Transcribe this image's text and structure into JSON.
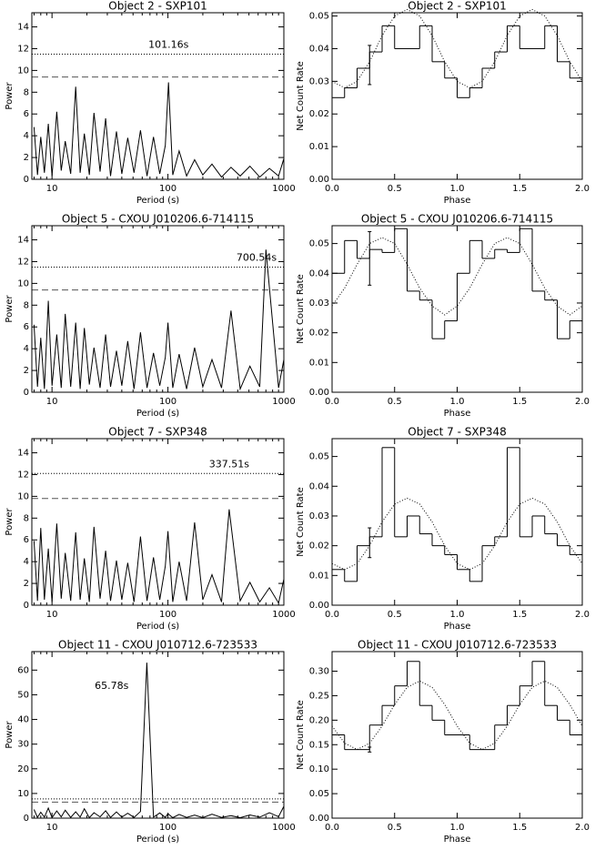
{
  "chart_data": [
    {
      "type": "line",
      "title": "Object 2 - SXP101",
      "xlabel": "Period (s)",
      "ylabel": "Power",
      "xlog": true,
      "color": "#000000",
      "x": [
        7,
        7.5,
        8,
        8.6,
        9.3,
        10,
        11,
        12,
        13,
        14.5,
        16,
        17.5,
        19,
        21,
        23,
        26,
        29,
        32,
        36,
        40,
        45,
        51,
        58,
        66,
        75,
        85,
        95,
        101.16,
        110,
        125,
        145,
        170,
        200,
        240,
        290,
        350,
        420,
        510,
        620,
        750,
        900,
        1000
      ],
      "values": [
        4.8,
        0.4,
        3.9,
        0.6,
        5.1,
        0.3,
        6.2,
        0.8,
        3.5,
        0.5,
        8.5,
        0.6,
        4.2,
        0.4,
        6.1,
        0.7,
        5.6,
        0.3,
        4.4,
        0.5,
        3.8,
        0.6,
        4.5,
        0.3,
        3.9,
        0.5,
        3.1,
        8.9,
        0.4,
        2.6,
        0.3,
        1.8,
        0.4,
        1.4,
        0.2,
        1.1,
        0.3,
        1.2,
        0.2,
        1.0,
        0.3,
        1.9
      ],
      "hlines": [
        {
          "value": 11.5,
          "style": "dotted",
          "color": "#000000"
        },
        {
          "value": 9.4,
          "style": "dashed",
          "color": "#555555"
        }
      ],
      "annotation": "101.16s",
      "xlim": [
        6.7,
        1000
      ],
      "xticks": [
        10,
        100,
        1000
      ],
      "ylim": [
        0,
        15.3
      ],
      "yticks": [
        0,
        2,
        4,
        6,
        8,
        10,
        12,
        14
      ]
    },
    {
      "type": "histogram",
      "title": "Object 2 - SXP101",
      "xlabel": "Phase",
      "ylabel": "Net Count Rate",
      "color": "#000000",
      "bins": [
        0,
        0.1,
        0.2,
        0.3,
        0.4,
        0.5,
        0.6,
        0.7,
        0.8,
        0.9,
        1.0,
        1.1,
        1.2,
        1.3,
        1.4,
        1.5,
        1.6,
        1.7,
        1.8,
        1.9,
        2.0
      ],
      "values": [
        0.025,
        0.028,
        0.034,
        0.039,
        0.047,
        0.04,
        0.04,
        0.047,
        0.036,
        0.031,
        0.025,
        0.028,
        0.034,
        0.039,
        0.047,
        0.04,
        0.04,
        0.047,
        0.036,
        0.031
      ],
      "fit": {
        "style": "dotted",
        "x": [
          0,
          0.1,
          0.2,
          0.3,
          0.4,
          0.5,
          0.6,
          0.7,
          0.8,
          0.9,
          1.0,
          1.1,
          1.2,
          1.3,
          1.4,
          1.5,
          1.6,
          1.7,
          1.8,
          1.9,
          2.0
        ],
        "values": [
          0.03,
          0.028,
          0.03,
          0.036,
          0.044,
          0.05,
          0.052,
          0.05,
          0.044,
          0.036,
          0.03,
          0.028,
          0.03,
          0.036,
          0.044,
          0.05,
          0.052,
          0.05,
          0.044,
          0.036,
          0.03
        ]
      },
      "error_bar": {
        "x": 0.3,
        "value": 0.035,
        "error": 0.006
      },
      "xlim": [
        0,
        2
      ],
      "xticks": [
        {
          "value": 0,
          "label": "0.0"
        },
        {
          "value": 0.5,
          "label": "0.5"
        },
        {
          "value": 1,
          "label": "1.0"
        },
        {
          "value": 1.5,
          "label": "1.5"
        },
        {
          "value": 2,
          "label": "2.0"
        }
      ],
      "ylim": [
        0,
        0.051
      ],
      "yticks": [
        {
          "value": 0,
          "label": "0.00"
        },
        {
          "value": 0.01,
          "label": "0.01"
        },
        {
          "value": 0.02,
          "label": "0.02"
        },
        {
          "value": 0.03,
          "label": "0.03"
        },
        {
          "value": 0.04,
          "label": "0.04"
        },
        {
          "value": 0.05,
          "label": "0.05"
        }
      ]
    },
    {
      "type": "line",
      "title": "Object 5 - CXOU J010206.6-714115",
      "xlabel": "Period (s)",
      "ylabel": "Power",
      "xlog": true,
      "color": "#000000",
      "x": [
        7,
        7.5,
        8,
        8.6,
        9.3,
        10,
        11,
        12,
        13,
        14.5,
        16,
        17.5,
        19,
        21,
        23,
        26,
        29,
        32,
        36,
        40,
        45,
        51,
        58,
        66,
        75,
        85,
        95,
        100,
        110,
        125,
        145,
        170,
        200,
        240,
        290,
        350,
        420,
        510,
        620,
        700.54,
        900,
        1000
      ],
      "values": [
        6.2,
        0.5,
        5.0,
        0.3,
        8.4,
        0.6,
        5.3,
        0.4,
        7.2,
        0.5,
        6.4,
        0.3,
        5.9,
        0.7,
        4.1,
        0.4,
        5.3,
        0.5,
        3.8,
        0.6,
        4.7,
        0.3,
        5.5,
        0.4,
        3.6,
        0.6,
        3.2,
        6.4,
        0.4,
        3.5,
        0.3,
        4.1,
        0.5,
        3.0,
        0.4,
        7.5,
        0.3,
        2.4,
        0.5,
        13.1,
        0.4,
        3.0
      ],
      "hlines": [
        {
          "value": 11.5,
          "style": "dotted",
          "color": "#000000"
        },
        {
          "value": 9.4,
          "style": "dashed",
          "color": "#555555"
        }
      ],
      "annotation": "700.54s",
      "xlim": [
        6.7,
        1000
      ],
      "xticks": [
        10,
        100,
        1000
      ],
      "ylim": [
        0,
        15.3
      ],
      "yticks": [
        0,
        2,
        4,
        6,
        8,
        10,
        12,
        14
      ]
    },
    {
      "type": "histogram",
      "title": "Object 5 - CXOU J010206.6-714115",
      "xlabel": "Phase",
      "ylabel": "Net Count Rate",
      "color": "#000000",
      "bins": [
        0,
        0.1,
        0.2,
        0.3,
        0.4,
        0.5,
        0.6,
        0.7,
        0.8,
        0.9,
        1.0,
        1.1,
        1.2,
        1.3,
        1.4,
        1.5,
        1.6,
        1.7,
        1.8,
        1.9,
        2.0
      ],
      "values": [
        0.04,
        0.051,
        0.045,
        0.048,
        0.047,
        0.055,
        0.034,
        0.031,
        0.018,
        0.024,
        0.04,
        0.051,
        0.045,
        0.048,
        0.047,
        0.055,
        0.034,
        0.031,
        0.018,
        0.024
      ],
      "fit": {
        "style": "dotted",
        "x": [
          0,
          0.1,
          0.2,
          0.3,
          0.4,
          0.5,
          0.6,
          0.7,
          0.8,
          0.9,
          1.0,
          1.1,
          1.2,
          1.3,
          1.4,
          1.5,
          1.6,
          1.7,
          1.8,
          1.9,
          2.0
        ],
        "values": [
          0.029,
          0.035,
          0.043,
          0.05,
          0.052,
          0.05,
          0.043,
          0.035,
          0.029,
          0.026,
          0.029,
          0.035,
          0.043,
          0.05,
          0.052,
          0.05,
          0.043,
          0.035,
          0.029,
          0.026,
          0.029
        ]
      },
      "error_bar": {
        "x": 0.3,
        "value": 0.045,
        "error": 0.009
      },
      "xlim": [
        0,
        2
      ],
      "xticks": [
        {
          "value": 0,
          "label": "0.0"
        },
        {
          "value": 0.5,
          "label": "0.5"
        },
        {
          "value": 1,
          "label": "1.0"
        },
        {
          "value": 1.5,
          "label": "1.5"
        },
        {
          "value": 2,
          "label": "2.0"
        }
      ],
      "ylim": [
        0,
        0.056
      ],
      "yticks": [
        {
          "value": 0,
          "label": "0.00"
        },
        {
          "value": 0.01,
          "label": "0.01"
        },
        {
          "value": 0.02,
          "label": "0.02"
        },
        {
          "value": 0.03,
          "label": "0.03"
        },
        {
          "value": 0.04,
          "label": "0.04"
        },
        {
          "value": 0.05,
          "label": "0.05"
        }
      ]
    },
    {
      "type": "line",
      "title": "Object 7 - SXP348",
      "xlabel": "Period (s)",
      "ylabel": "Power",
      "xlog": true,
      "color": "#000000",
      "x": [
        7,
        7.5,
        8,
        8.6,
        9.3,
        10,
        11,
        12,
        13,
        14.5,
        16,
        17.5,
        19,
        21,
        23,
        26,
        29,
        32,
        36,
        40,
        45,
        51,
        58,
        66,
        75,
        85,
        95,
        100,
        110,
        125,
        145,
        170,
        200,
        240,
        290,
        337.51,
        420,
        510,
        620,
        750,
        900,
        1000
      ],
      "values": [
        5.9,
        0.4,
        7.1,
        0.5,
        5.2,
        0.3,
        7.5,
        0.6,
        4.8,
        0.4,
        6.7,
        0.5,
        4.3,
        0.3,
        7.2,
        0.6,
        5.0,
        0.4,
        4.1,
        0.5,
        3.9,
        0.3,
        6.3,
        0.4,
        4.4,
        0.5,
        3.6,
        6.8,
        0.3,
        4.0,
        0.4,
        7.6,
        0.5,
        2.8,
        0.3,
        8.8,
        0.4,
        2.1,
        0.3,
        1.6,
        0.2,
        2.4
      ],
      "hlines": [
        {
          "value": 12.1,
          "style": "dotted",
          "color": "#000000"
        },
        {
          "value": 9.8,
          "style": "dashed",
          "color": "#555555"
        }
      ],
      "annotation": "337.51s",
      "xlim": [
        6.7,
        1000
      ],
      "xticks": [
        10,
        100,
        1000
      ],
      "ylim": [
        0,
        15.3
      ],
      "yticks": [
        0,
        2,
        4,
        6,
        8,
        10,
        12,
        14
      ]
    },
    {
      "type": "histogram",
      "title": "Object 7 - SXP348",
      "xlabel": "Phase",
      "ylabel": "Net Count Rate",
      "color": "#000000",
      "bins": [
        0,
        0.1,
        0.2,
        0.3,
        0.4,
        0.5,
        0.6,
        0.7,
        0.8,
        0.9,
        1.0,
        1.1,
        1.2,
        1.3,
        1.4,
        1.5,
        1.6,
        1.7,
        1.8,
        1.9,
        2.0
      ],
      "values": [
        0.012,
        0.008,
        0.02,
        0.023,
        0.053,
        0.023,
        0.03,
        0.024,
        0.02,
        0.017,
        0.012,
        0.008,
        0.02,
        0.023,
        0.053,
        0.023,
        0.03,
        0.024,
        0.02,
        0.017
      ],
      "fit": {
        "style": "dotted",
        "x": [
          0,
          0.1,
          0.2,
          0.3,
          0.4,
          0.5,
          0.6,
          0.7,
          0.8,
          0.9,
          1.0,
          1.1,
          1.2,
          1.3,
          1.4,
          1.5,
          1.6,
          1.7,
          1.8,
          1.9,
          2.0
        ],
        "values": [
          0.014,
          0.012,
          0.014,
          0.02,
          0.028,
          0.034,
          0.036,
          0.034,
          0.028,
          0.02,
          0.014,
          0.012,
          0.014,
          0.02,
          0.028,
          0.034,
          0.036,
          0.034,
          0.028,
          0.02,
          0.014
        ]
      },
      "error_bar": {
        "x": 0.3,
        "value": 0.021,
        "error": 0.005
      },
      "xlim": [
        0,
        2
      ],
      "xticks": [
        {
          "value": 0,
          "label": "0.0"
        },
        {
          "value": 0.5,
          "label": "0.5"
        },
        {
          "value": 1,
          "label": "1.0"
        },
        {
          "value": 1.5,
          "label": "1.5"
        },
        {
          "value": 2,
          "label": "2.0"
        }
      ],
      "ylim": [
        0,
        0.056
      ],
      "yticks": [
        {
          "value": 0,
          "label": "0.00"
        },
        {
          "value": 0.01,
          "label": "0.01"
        },
        {
          "value": 0.02,
          "label": "0.02"
        },
        {
          "value": 0.03,
          "label": "0.03"
        },
        {
          "value": 0.04,
          "label": "0.04"
        },
        {
          "value": 0.05,
          "label": "0.05"
        }
      ]
    },
    {
      "type": "line",
      "title": "Object 11 - CXOU J010712.6-723533",
      "xlabel": "Period (s)",
      "ylabel": "Power",
      "xlog": true,
      "color": "#000000",
      "x": [
        7,
        7.5,
        8,
        8.6,
        9.3,
        10,
        11,
        12,
        13,
        14.5,
        16,
        17.5,
        19,
        21,
        23,
        26,
        29,
        32,
        36,
        40,
        45,
        51,
        58,
        65.78,
        75,
        85,
        95,
        100,
        110,
        125,
        145,
        170,
        200,
        240,
        290,
        350,
        420,
        510,
        620,
        750,
        900,
        1000
      ],
      "values": [
        3.5,
        0.3,
        2.4,
        0.4,
        4.1,
        0.2,
        2.9,
        0.5,
        3.2,
        0.3,
        2.6,
        0.4,
        3.8,
        0.2,
        2.2,
        0.5,
        3.0,
        0.3,
        2.5,
        0.4,
        2.0,
        0.3,
        2.7,
        63,
        0.4,
        2.1,
        0.3,
        1.8,
        0.2,
        1.5,
        0.3,
        1.2,
        0.2,
        1.6,
        0.3,
        1.0,
        0.2,
        1.3,
        0.4,
        2.2,
        0.6,
        4.8
      ],
      "hlines": [
        {
          "value": 7.8,
          "style": "dotted",
          "color": "#000000"
        },
        {
          "value": 6.5,
          "style": "dashed",
          "color": "#555555"
        }
      ],
      "annotation": "65.78s",
      "xlim": [
        6.7,
        1000
      ],
      "xticks": [
        10,
        100,
        1000
      ],
      "ylim": [
        0,
        67.5
      ],
      "yticks": [
        0,
        10,
        20,
        30,
        40,
        50,
        60
      ]
    },
    {
      "type": "histogram",
      "title": "Object 11 - CXOU J010712.6-723533",
      "xlabel": "Phase",
      "ylabel": "Net Count Rate",
      "color": "#000000",
      "bins": [
        0,
        0.1,
        0.2,
        0.3,
        0.4,
        0.5,
        0.6,
        0.7,
        0.8,
        0.9,
        1.0,
        1.1,
        1.2,
        1.3,
        1.4,
        1.5,
        1.6,
        1.7,
        1.8,
        1.9,
        2.0
      ],
      "values": [
        0.17,
        0.14,
        0.14,
        0.19,
        0.23,
        0.27,
        0.32,
        0.23,
        0.2,
        0.17,
        0.17,
        0.14,
        0.14,
        0.19,
        0.23,
        0.27,
        0.32,
        0.23,
        0.2,
        0.17
      ],
      "fit": {
        "style": "dotted",
        "x": [
          0,
          0.1,
          0.2,
          0.3,
          0.4,
          0.5,
          0.6,
          0.7,
          0.8,
          0.9,
          1.0,
          1.1,
          1.2,
          1.3,
          1.4,
          1.5,
          1.6,
          1.7,
          1.8,
          1.9,
          2.0
        ],
        "values": [
          0.188,
          0.153,
          0.14,
          0.153,
          0.188,
          0.232,
          0.267,
          0.28,
          0.267,
          0.232,
          0.188,
          0.153,
          0.14,
          0.153,
          0.188,
          0.232,
          0.267,
          0.28,
          0.267,
          0.232,
          0.188
        ]
      },
      "error_bar": {
        "x": 0.3,
        "value": 0.14,
        "error": 0.005
      },
      "xlim": [
        0,
        2
      ],
      "xticks": [
        {
          "value": 0,
          "label": "0.0"
        },
        {
          "value": 0.5,
          "label": "0.5"
        },
        {
          "value": 1,
          "label": "1.0"
        },
        {
          "value": 1.5,
          "label": "1.5"
        },
        {
          "value": 2,
          "label": "2.0"
        }
      ],
      "ylim": [
        0,
        0.34
      ],
      "yticks": [
        {
          "value": 0,
          "label": "0.00"
        },
        {
          "value": 0.05,
          "label": "0.05"
        },
        {
          "value": 0.1,
          "label": "0.10"
        },
        {
          "value": 0.15,
          "label": "0.15"
        },
        {
          "value": 0.2,
          "label": "0.20"
        },
        {
          "value": 0.25,
          "label": "0.25"
        },
        {
          "value": 0.3,
          "label": "0.30"
        }
      ]
    }
  ]
}
